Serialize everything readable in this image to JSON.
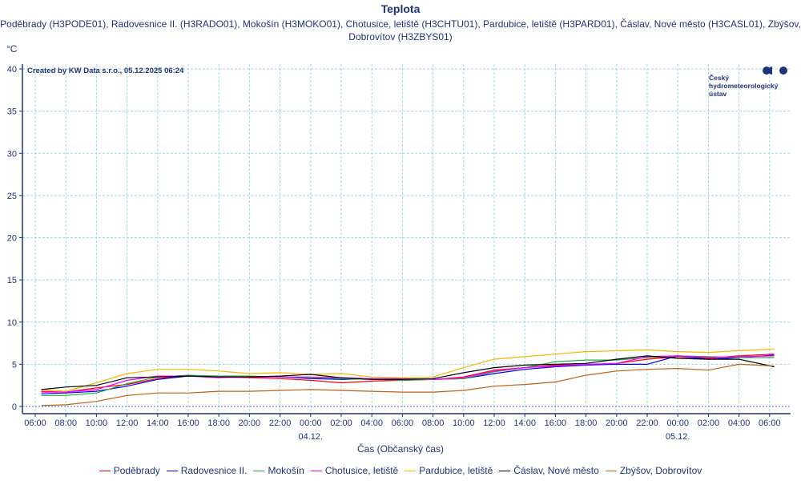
{
  "chart_data": {
    "type": "line",
    "title": "Teplota",
    "subtitle": "Poděbrady (H3PODE01), Radovesnice II. (H3RADO01), Mokošín (H3MOKO01), Chotusice, letiště (H3CHTU01), Pardubice, letiště (H3PARD01), Čáslav, Nové město (H3CASL01), Zbýšov, Dobrovítov (H3ZBYS01)",
    "ylabel": "°C",
    "xlabel": "Čas (Občanský čas)",
    "credit": "Created by KW Data s.r.o., 05.12.2025 06:24",
    "logo_text": [
      "Český",
      "hydrometeorologický",
      "ústav"
    ],
    "ylim": [
      0,
      40
    ],
    "yticks": [
      0,
      5,
      10,
      15,
      20,
      25,
      30,
      35,
      40
    ],
    "x_unit": "hours since 03.12. 00:00",
    "xlim": [
      5.2,
      55.5
    ],
    "xticks": [
      {
        "h": 6,
        "label": "06:00"
      },
      {
        "h": 8,
        "label": "08:00"
      },
      {
        "h": 10,
        "label": "10:00"
      },
      {
        "h": 12,
        "label": "12:00"
      },
      {
        "h": 14,
        "label": "14:00"
      },
      {
        "h": 16,
        "label": "16:00"
      },
      {
        "h": 18,
        "label": "18:00"
      },
      {
        "h": 20,
        "label": "20:00"
      },
      {
        "h": 22,
        "label": "22:00"
      },
      {
        "h": 24,
        "label": "00:00"
      },
      {
        "h": 26,
        "label": "02:00"
      },
      {
        "h": 28,
        "label": "04:00"
      },
      {
        "h": 30,
        "label": "06:00"
      },
      {
        "h": 32,
        "label": "08:00"
      },
      {
        "h": 34,
        "label": "10:00"
      },
      {
        "h": 36,
        "label": "12:00"
      },
      {
        "h": 38,
        "label": "14:00"
      },
      {
        "h": 40,
        "label": "16:00"
      },
      {
        "h": 42,
        "label": "18:00"
      },
      {
        "h": 44,
        "label": "20:00"
      },
      {
        "h": 46,
        "label": "22:00"
      },
      {
        "h": 48,
        "label": "00:00"
      },
      {
        "h": 50,
        "label": "02:00"
      },
      {
        "h": 52,
        "label": "04:00"
      },
      {
        "h": 54,
        "label": "06:00"
      }
    ],
    "date_labels": [
      {
        "h": 24,
        "label": "04.12."
      },
      {
        "h": 48,
        "label": "05.12."
      }
    ],
    "grid": true,
    "legend_position": "bottom",
    "x": [
      6.4,
      8,
      10,
      12,
      14,
      16,
      18,
      20,
      22,
      24,
      26,
      28,
      30,
      32,
      34,
      36,
      38,
      40,
      42,
      44,
      46,
      48,
      50,
      52,
      54.3
    ],
    "series": [
      {
        "name": "Poděbrady",
        "color": "#ff0000",
        "values": [
          1.8,
          1.7,
          2.2,
          2.6,
          3.3,
          3.7,
          3.5,
          3.4,
          3.3,
          3.1,
          2.8,
          3.0,
          3.1,
          3.2,
          3.5,
          4.3,
          4.6,
          4.9,
          4.9,
          5.1,
          5.6,
          5.9,
          5.7,
          6.0,
          6.2
        ]
      },
      {
        "name": "Radovesnice II.",
        "color": "#0000ff",
        "values": [
          1.5,
          1.6,
          1.8,
          2.4,
          3.2,
          3.6,
          3.6,
          3.5,
          3.5,
          3.3,
          3.2,
          3.3,
          3.3,
          3.2,
          3.3,
          3.9,
          4.4,
          4.7,
          4.9,
          5.0,
          5.0,
          6.0,
          5.6,
          5.8,
          6.1
        ]
      },
      {
        "name": "Mokošín",
        "color": "#22a83a",
        "values": [
          1.3,
          1.3,
          1.6,
          2.7,
          3.5,
          3.7,
          3.6,
          3.6,
          3.5,
          3.4,
          3.3,
          3.2,
          3.1,
          3.2,
          3.3,
          4.1,
          4.6,
          5.3,
          5.5,
          5.5,
          5.8,
          6.0,
          5.9,
          5.8,
          5.8
        ]
      },
      {
        "name": "Chotusice, letiště",
        "color": "#ff00ff",
        "values": [
          1.7,
          1.7,
          2.0,
          3.1,
          3.6,
          3.6,
          3.4,
          3.5,
          3.5,
          3.5,
          3.4,
          3.3,
          3.3,
          3.2,
          3.4,
          4.2,
          4.6,
          4.8,
          5.0,
          5.1,
          5.9,
          6.0,
          5.8,
          5.9,
          6.0
        ]
      },
      {
        "name": "Pardubice, letiště",
        "color": "#f5b800",
        "values": [
          2.0,
          1.8,
          2.8,
          3.9,
          4.4,
          4.4,
          4.2,
          3.9,
          4.0,
          3.8,
          3.9,
          3.5,
          3.4,
          3.5,
          4.6,
          5.6,
          5.9,
          6.2,
          6.5,
          6.6,
          6.7,
          6.5,
          6.4,
          6.6,
          6.8
        ]
      },
      {
        "name": "Čáslav, Nové město",
        "color": "#000000",
        "values": [
          2.0,
          2.3,
          2.5,
          3.4,
          3.5,
          3.6,
          3.5,
          3.5,
          3.6,
          3.8,
          3.4,
          3.2,
          3.2,
          3.3,
          4.0,
          4.6,
          4.9,
          5.0,
          5.1,
          5.6,
          6.0,
          5.7,
          5.6,
          5.6,
          4.7
        ]
      },
      {
        "name": "Zbýšov, Dobrovítov",
        "color": "#c06010",
        "values": [
          0.1,
          0.2,
          0.6,
          1.3,
          1.6,
          1.6,
          1.8,
          1.8,
          1.9,
          2.0,
          1.9,
          1.8,
          1.7,
          1.7,
          1.9,
          2.4,
          2.6,
          2.9,
          3.7,
          4.2,
          4.4,
          4.5,
          4.3,
          5.0,
          4.8
        ]
      }
    ]
  }
}
